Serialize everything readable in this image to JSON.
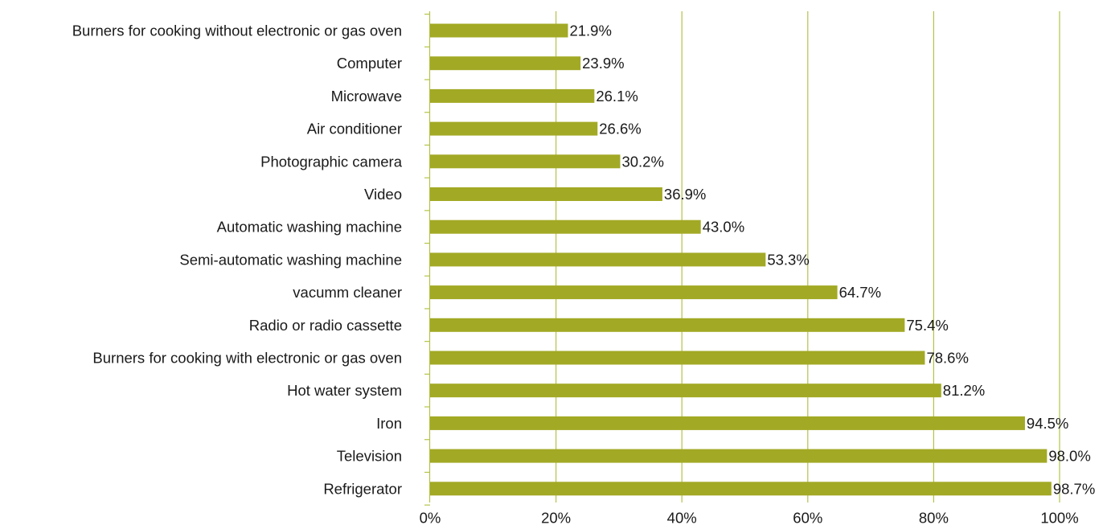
{
  "chart_data": {
    "type": "bar",
    "orientation": "horizontal",
    "title": "",
    "xlabel": "",
    "ylabel": "",
    "xlim": [
      0,
      100
    ],
    "grid": true,
    "bar_color": "#a2a924",
    "grid_color": "#b5c24a",
    "categories": [
      "Burners for cooking without electronic or gas oven",
      "Computer",
      "Microwave",
      "Air conditioner",
      "Photographic camera",
      "Video",
      "Automatic washing machine",
      "Semi-automatic washing machine",
      "vacumm cleaner",
      "Radio or radio cassette",
      "Burners for cooking with electronic or gas oven",
      "Hot water system",
      "Iron",
      "Television",
      "Refrigerator"
    ],
    "values": [
      21.9,
      23.9,
      26.1,
      26.6,
      30.2,
      36.9,
      43.0,
      53.3,
      64.7,
      75.4,
      78.6,
      81.2,
      94.5,
      98.0,
      98.7
    ],
    "value_labels": [
      "21.9%",
      "23.9%",
      "26.1%",
      "26.6%",
      "30.2%",
      "36.9%",
      "43.0%",
      "53.3%",
      "64.7%",
      "75.4%",
      "78.6%",
      "81.2%",
      "94.5%",
      "98.0%",
      "98.7%"
    ],
    "x_ticks": [
      0,
      20,
      40,
      60,
      80,
      100
    ],
    "x_tick_labels": [
      "0%",
      "20%",
      "40%",
      "60%",
      "80%",
      "100%"
    ]
  }
}
